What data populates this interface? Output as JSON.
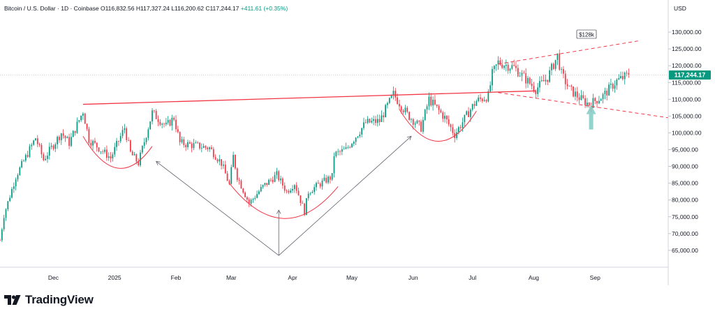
{
  "header": {
    "symbol": "Bitcoin / U.S. Dollar · 1D · Coinbase",
    "open": "O116,832.56",
    "high": "H117,327.24",
    "low": "L116,200.62",
    "close": "C117,244.17",
    "change": "+411.61 (+0.35%)"
  },
  "brand": {
    "name": "TradingView",
    "icon": "tradingview-logo-icon"
  },
  "colors": {
    "up": "#089981",
    "down": "#f23645",
    "annotation": "#f23645",
    "arrow": "#80cbc4"
  },
  "chart_data": {
    "type": "candlestick",
    "currency_label": "USD",
    "last_price_label": "117,244.17",
    "last_price": 117244.17,
    "ylim": [
      60000,
      135000
    ],
    "y_ticks": [
      "65,000.00",
      "70,000.00",
      "75,000.00",
      "80,000.00",
      "85,000.00",
      "90,000.00",
      "95,000.00",
      "100,000.00",
      "105,000.00",
      "110,000.00",
      "115,000.00",
      "120,000.00",
      "125,000.00",
      "130,000.00"
    ],
    "y_tick_values": [
      65000,
      70000,
      75000,
      80000,
      85000,
      90000,
      95000,
      100000,
      105000,
      110000,
      115000,
      120000,
      125000,
      130000
    ],
    "x_labels": [
      "Dec",
      "2025",
      "Feb",
      "Mar",
      "Apr",
      "May",
      "Jun",
      "Jul",
      "Aug",
      "Sep"
    ],
    "x_label_dates": [
      "2024-12-01",
      "2025-01-01",
      "2025-02-01",
      "2025-03-01",
      "2025-04-01",
      "2025-05-01",
      "2025-06-01",
      "2025-07-01",
      "2025-08-01",
      "2025-09-01"
    ],
    "xlim": [
      "2024-11-04",
      "2025-10-08"
    ],
    "price_anchors": [
      [
        "2024-11-04",
        68000
      ],
      [
        "2024-11-06",
        75500
      ],
      [
        "2024-11-12",
        87000
      ],
      [
        "2024-11-22",
        98500
      ],
      [
        "2024-11-26",
        92000
      ],
      [
        "2024-12-05",
        100000
      ],
      [
        "2024-12-09",
        97000
      ],
      [
        "2024-12-16",
        106500
      ],
      [
        "2024-12-19",
        98000
      ],
      [
        "2024-12-30",
        92500
      ],
      [
        "2025-01-06",
        101500
      ],
      [
        "2025-01-09",
        94000
      ],
      [
        "2025-01-13",
        91000
      ],
      [
        "2025-01-20",
        106000
      ],
      [
        "2025-01-27",
        102000
      ],
      [
        "2025-01-31",
        104500
      ],
      [
        "2025-02-03",
        97000
      ],
      [
        "2025-02-18",
        95500
      ],
      [
        "2025-02-24",
        91000
      ],
      [
        "2025-02-28",
        84500
      ],
      [
        "2025-03-02",
        93000
      ],
      [
        "2025-03-04",
        87000
      ],
      [
        "2025-03-10",
        79000
      ],
      [
        "2025-03-17",
        84000
      ],
      [
        "2025-03-24",
        87500
      ],
      [
        "2025-03-29",
        82500
      ],
      [
        "2025-04-02",
        85000
      ],
      [
        "2025-04-07",
        76500
      ],
      [
        "2025-04-09",
        82500
      ],
      [
        "2025-04-14",
        84500
      ],
      [
        "2025-04-21",
        87000
      ],
      [
        "2025-04-22",
        93500
      ],
      [
        "2025-04-28",
        95000
      ],
      [
        "2025-05-08",
        103000
      ],
      [
        "2025-05-15",
        103500
      ],
      [
        "2025-05-22",
        111500
      ],
      [
        "2025-05-29",
        105500
      ],
      [
        "2025-06-05",
        101500
      ],
      [
        "2025-06-09",
        110000
      ],
      [
        "2025-06-17",
        104500
      ],
      [
        "2025-06-22",
        99500
      ],
      [
        "2025-06-30",
        107000
      ],
      [
        "2025-07-03",
        109500
      ],
      [
        "2025-07-09",
        111000
      ],
      [
        "2025-07-11",
        117500
      ],
      [
        "2025-07-14",
        121000
      ],
      [
        "2025-07-22",
        119500
      ],
      [
        "2025-08-02",
        113000
      ],
      [
        "2025-08-08",
        116500
      ],
      [
        "2025-08-13",
        123000
      ],
      [
        "2025-08-15",
        117500
      ],
      [
        "2025-08-19",
        113000
      ],
      [
        "2025-08-25",
        110000
      ],
      [
        "2025-08-29",
        108500
      ],
      [
        "2025-09-05",
        111000
      ],
      [
        "2025-09-12",
        115500
      ],
      [
        "2025-09-18",
        117244
      ]
    ],
    "annotations": {
      "target_label": "$128k",
      "resistance_line": [
        [
          "2024-12-16",
          108500
        ],
        [
          "2025-08-02",
          112500
        ]
      ],
      "channel_upper": [
        [
          "2025-07-14",
          120500
        ],
        [
          "2025-09-24",
          127500
        ]
      ],
      "channel_lower": [
        [
          "2025-07-14",
          112000
        ],
        [
          "2025-10-08",
          104500
        ]
      ],
      "arcs": [
        {
          "from": [
            "2024-12-16",
            99000
          ],
          "to": [
            "2025-01-20",
            96000
          ],
          "bottom": 89500
        },
        {
          "from": [
            "2025-02-28",
            85000
          ],
          "to": [
            "2025-04-24",
            84000
          ],
          "bottom": 74500
        },
        {
          "from": [
            "2025-05-25",
            107000
          ],
          "to": [
            "2025-07-03",
            106500
          ],
          "bottom": 97500
        }
      ],
      "v_pattern": [
        [
          "2025-01-22",
          91500
        ],
        [
          "2025-03-25",
          63500
        ],
        [
          "2025-05-31",
          99000
        ]
      ],
      "up_arrow": [
        [
          "2025-03-25",
          63500
        ],
        [
          "2025-03-25",
          77000
        ]
      ],
      "bounce_arrow_at": [
        "2025-08-30",
        101000
      ]
    }
  }
}
